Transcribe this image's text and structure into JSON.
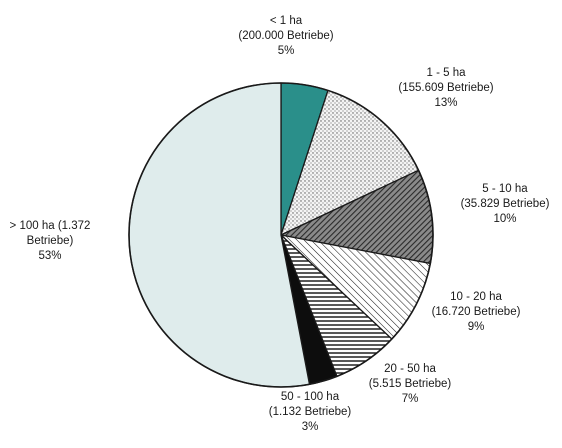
{
  "chart_data": {
    "type": "pie",
    "title": "",
    "start_angle_deg": 0,
    "direction": "clockwise",
    "slices": [
      {
        "label": "< 1 ha",
        "detail": "(200.000 Betriebe)",
        "percent_label": "5%",
        "value": 5,
        "fill": "#2a8f8a",
        "pattern": "solid"
      },
      {
        "label": "1 - 5 ha",
        "detail": "(155.609 Betriebe)",
        "percent_label": "13%",
        "value": 13,
        "fill": "#f2f2f2",
        "pattern": "dots"
      },
      {
        "label": "5 - 10 ha",
        "detail": "(35.829 Betriebe)",
        "percent_label": "10%",
        "value": 10,
        "fill": "#6e6e6e",
        "pattern": "dense-diagonal"
      },
      {
        "label": "10 - 20 ha",
        "detail": "(16.720 Betriebe)",
        "percent_label": "9%",
        "value": 9,
        "fill": "#ffffff",
        "pattern": "diagonal"
      },
      {
        "label": "20 - 50 ha",
        "detail": "(5.515 Betriebe)",
        "percent_label": "7%",
        "value": 7,
        "fill": "#ffffff",
        "pattern": "horizontal"
      },
      {
        "label": "50 - 100 ha",
        "detail": "(1.132 Betriebe)",
        "percent_label": "3%",
        "value": 3,
        "fill": "#0d0d0d",
        "pattern": "solid"
      },
      {
        "label": "> 100 ha (1.372",
        "detail": "Betriebe)",
        "percent_label": "53%",
        "value": 53,
        "fill": "#dfecec",
        "pattern": "solid"
      }
    ]
  }
}
